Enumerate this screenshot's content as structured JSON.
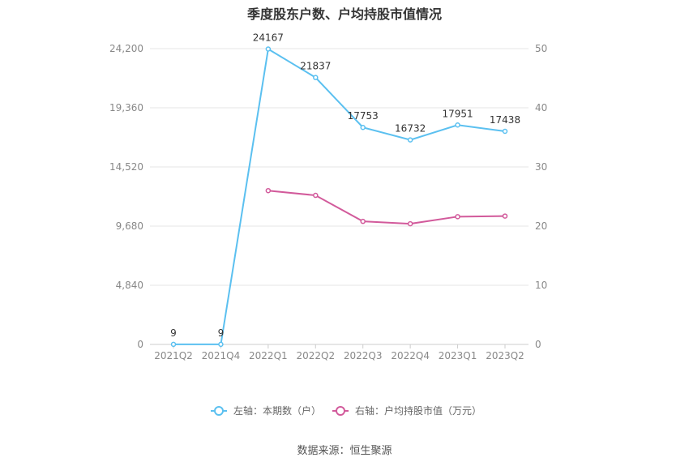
{
  "title": "季度股东户数、户均持股市值情况",
  "source": "数据来源：恒生聚源",
  "colors": {
    "left_series": "#5bc0f0",
    "right_series": "#d25a9b",
    "grid": "#e6e6e6",
    "axis": "#cccccc"
  },
  "chart_data": {
    "type": "line",
    "title": "季度股东户数、户均持股市值情况",
    "categories": [
      "2021Q2",
      "2021Q4",
      "2022Q1",
      "2022Q2",
      "2022Q3",
      "2022Q4",
      "2023Q1",
      "2023Q2"
    ],
    "left_axis": {
      "ylim": [
        0,
        24200
      ],
      "ticks": [
        0,
        4840,
        9680,
        14520,
        19360,
        24200
      ],
      "tick_labels": [
        "0",
        "4,840",
        "9,680",
        "14,520",
        "19,360",
        "24,200"
      ]
    },
    "right_axis": {
      "ylim": [
        0,
        50
      ],
      "ticks": [
        0,
        10,
        20,
        30,
        40,
        50
      ],
      "tick_labels": [
        "0",
        "10",
        "20",
        "30",
        "40",
        "50"
      ]
    },
    "series": [
      {
        "name": "左轴：本期数（户）",
        "axis": "left",
        "values": [
          9,
          9,
          24167,
          21837,
          17753,
          16732,
          17951,
          17438
        ],
        "labels": [
          "9",
          "9",
          "24167",
          "21837",
          "17753",
          "16732",
          "17951",
          "17438"
        ]
      },
      {
        "name": "右轴：户均持股市值（万元）",
        "axis": "right",
        "values": [
          null,
          null,
          26.0,
          25.2,
          20.8,
          20.4,
          21.6,
          21.7
        ]
      }
    ],
    "grid": true,
    "legend_position": "bottom"
  }
}
